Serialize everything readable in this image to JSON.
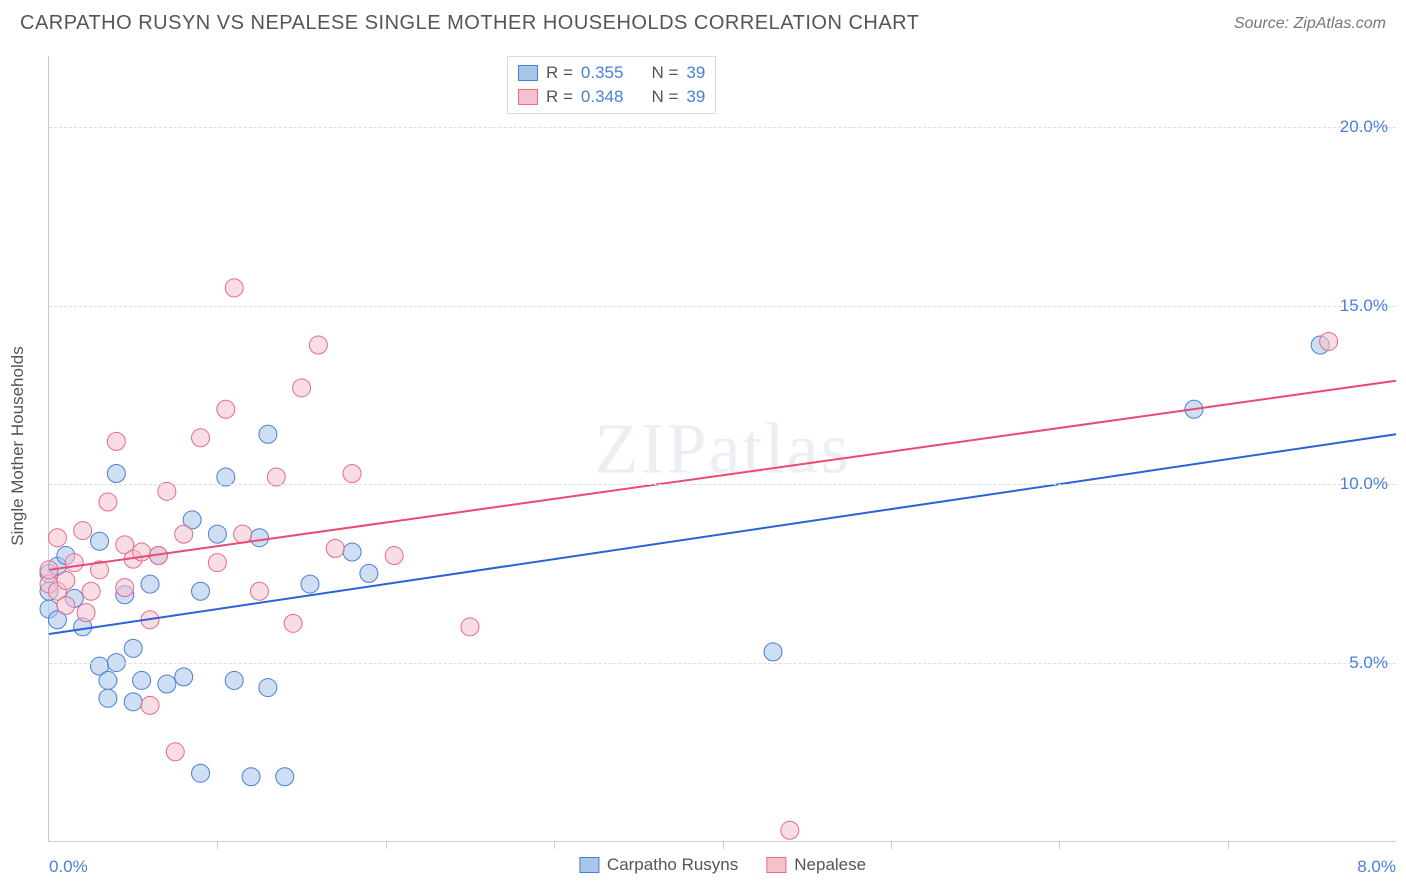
{
  "title": "CARPATHO RUSYN VS NEPALESE SINGLE MOTHER HOUSEHOLDS CORRELATION CHART",
  "source": "Source: ZipAtlas.com",
  "ylabel": "Single Mother Households",
  "watermark_a": "ZIP",
  "watermark_b": "atlas",
  "chart": {
    "type": "scatter",
    "xlim": [
      0.0,
      8.0
    ],
    "ylim": [
      0.0,
      22.0
    ],
    "x_axis_label_left": "0.0%",
    "x_axis_label_right": "8.0%",
    "y_gridlines": [
      5.0,
      10.0,
      15.0,
      20.0
    ],
    "y_tick_labels": [
      "5.0%",
      "10.0%",
      "15.0%",
      "20.0%"
    ],
    "x_ticks": [
      1.0,
      2.0,
      3.0,
      4.0,
      5.0,
      6.0,
      7.0
    ],
    "background_color": "#ffffff",
    "grid_color": "#dddddd",
    "axis_color": "#cccccc",
    "tick_label_color": "#4a7fd8",
    "marker_radius": 9,
    "marker_opacity": 0.55,
    "line_width": 2,
    "series": [
      {
        "name": "Carpatho Rusyns",
        "color_fill": "#a8c5ea",
        "color_stroke": "#4a7fd8",
        "line_color": "#2962d9",
        "R": "0.355",
        "N": "39",
        "regression": {
          "x1": 0.0,
          "y1": 5.8,
          "x2": 8.0,
          "y2": 11.4
        },
        "points": [
          [
            0.0,
            7.0
          ],
          [
            0.0,
            7.5
          ],
          [
            0.0,
            6.5
          ],
          [
            0.05,
            6.2
          ],
          [
            0.05,
            7.7
          ],
          [
            0.1,
            8.0
          ],
          [
            0.15,
            6.8
          ],
          [
            0.2,
            6.0
          ],
          [
            0.3,
            4.9
          ],
          [
            0.3,
            8.4
          ],
          [
            0.35,
            4.0
          ],
          [
            0.35,
            4.5
          ],
          [
            0.4,
            10.3
          ],
          [
            0.4,
            5.0
          ],
          [
            0.45,
            6.9
          ],
          [
            0.5,
            3.9
          ],
          [
            0.5,
            5.4
          ],
          [
            0.55,
            4.5
          ],
          [
            0.6,
            7.2
          ],
          [
            0.65,
            8.0
          ],
          [
            0.7,
            4.4
          ],
          [
            0.8,
            4.6
          ],
          [
            0.85,
            9.0
          ],
          [
            0.9,
            7.0
          ],
          [
            0.9,
            1.9
          ],
          [
            1.0,
            8.6
          ],
          [
            1.05,
            10.2
          ],
          [
            1.1,
            4.5
          ],
          [
            1.2,
            1.8
          ],
          [
            1.25,
            8.5
          ],
          [
            1.3,
            11.4
          ],
          [
            1.3,
            4.3
          ],
          [
            1.4,
            1.8
          ],
          [
            1.55,
            7.2
          ],
          [
            1.8,
            8.1
          ],
          [
            1.9,
            7.5
          ],
          [
            4.3,
            5.3
          ],
          [
            6.8,
            12.1
          ],
          [
            7.55,
            13.9
          ]
        ]
      },
      {
        "name": "Nepalese",
        "color_fill": "#f4c1cd",
        "color_stroke": "#e86b8a",
        "line_color": "#e84b72",
        "R": "0.348",
        "N": "39",
        "regression": {
          "x1": 0.0,
          "y1": 7.6,
          "x2": 8.0,
          "y2": 12.9
        },
        "points": [
          [
            0.0,
            7.2
          ],
          [
            0.0,
            7.6
          ],
          [
            0.05,
            8.5
          ],
          [
            0.05,
            7.0
          ],
          [
            0.1,
            7.3
          ],
          [
            0.1,
            6.6
          ],
          [
            0.15,
            7.8
          ],
          [
            0.2,
            8.7
          ],
          [
            0.22,
            6.4
          ],
          [
            0.25,
            7.0
          ],
          [
            0.3,
            7.6
          ],
          [
            0.35,
            9.5
          ],
          [
            0.4,
            11.2
          ],
          [
            0.45,
            7.1
          ],
          [
            0.45,
            8.3
          ],
          [
            0.5,
            7.9
          ],
          [
            0.55,
            8.1
          ],
          [
            0.6,
            3.8
          ],
          [
            0.6,
            6.2
          ],
          [
            0.65,
            8.0
          ],
          [
            0.7,
            9.8
          ],
          [
            0.75,
            2.5
          ],
          [
            0.8,
            8.6
          ],
          [
            0.9,
            11.3
          ],
          [
            1.0,
            7.8
          ],
          [
            1.05,
            12.1
          ],
          [
            1.1,
            15.5
          ],
          [
            1.15,
            8.6
          ],
          [
            1.25,
            7.0
          ],
          [
            1.35,
            10.2
          ],
          [
            1.45,
            6.1
          ],
          [
            1.5,
            12.7
          ],
          [
            1.6,
            13.9
          ],
          [
            1.7,
            8.2
          ],
          [
            1.8,
            10.3
          ],
          [
            2.05,
            8.0
          ],
          [
            2.5,
            6.0
          ],
          [
            4.4,
            0.3
          ],
          [
            7.6,
            14.0
          ]
        ]
      }
    ]
  },
  "stats_labels": {
    "R": "R =",
    "N": "N ="
  },
  "legend_labels": [
    "Carpatho Rusyns",
    "Nepalese"
  ]
}
